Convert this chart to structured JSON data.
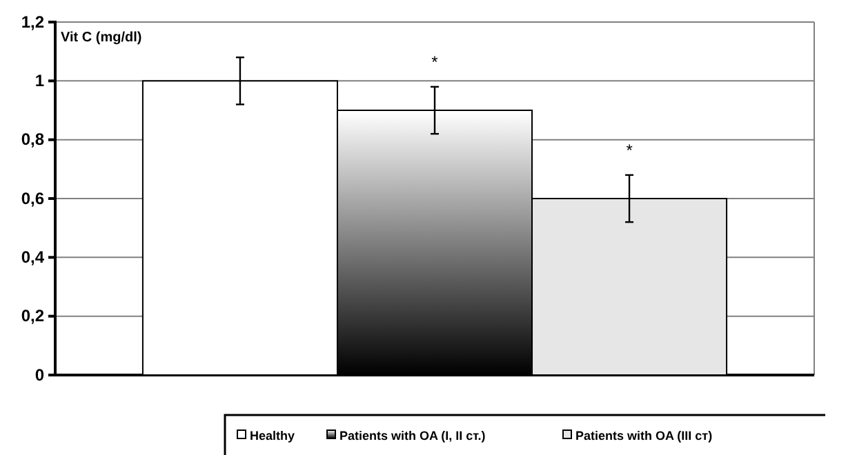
{
  "chart_data": {
    "type": "bar",
    "ylabel": "Vit  C (mg/dl)",
    "categories": [
      null
    ],
    "series": [
      {
        "name": "Healthy",
        "color": "#ffffff",
        "values": [
          1.0
        ],
        "errors": [
          0.08
        ]
      },
      {
        "name": "Patients with  OA (I, II ст.)",
        "color": "#000000",
        "values": [
          0.9
        ],
        "errors": [
          0.08
        ]
      },
      {
        "name": "Patients with OA (III ст)",
        "color": "#e6e6e6",
        "values": [
          0.6
        ],
        "errors": [
          0.08
        ]
      }
    ],
    "ylim": [
      0,
      1.2
    ],
    "yticks": [
      0,
      {
        "value": 0.2,
        "label": "0,2"
      },
      {
        "value": 0.4,
        "label": "0,4"
      },
      {
        "value": 0.6,
        "label": "0,6"
      },
      {
        "value": 0.8,
        "label": "0,8"
      },
      1,
      {
        "value": 1.2,
        "label": "1,2"
      }
    ],
    "grid": "y",
    "legend": "bottom",
    "annotations": [
      "*",
      "*"
    ]
  }
}
